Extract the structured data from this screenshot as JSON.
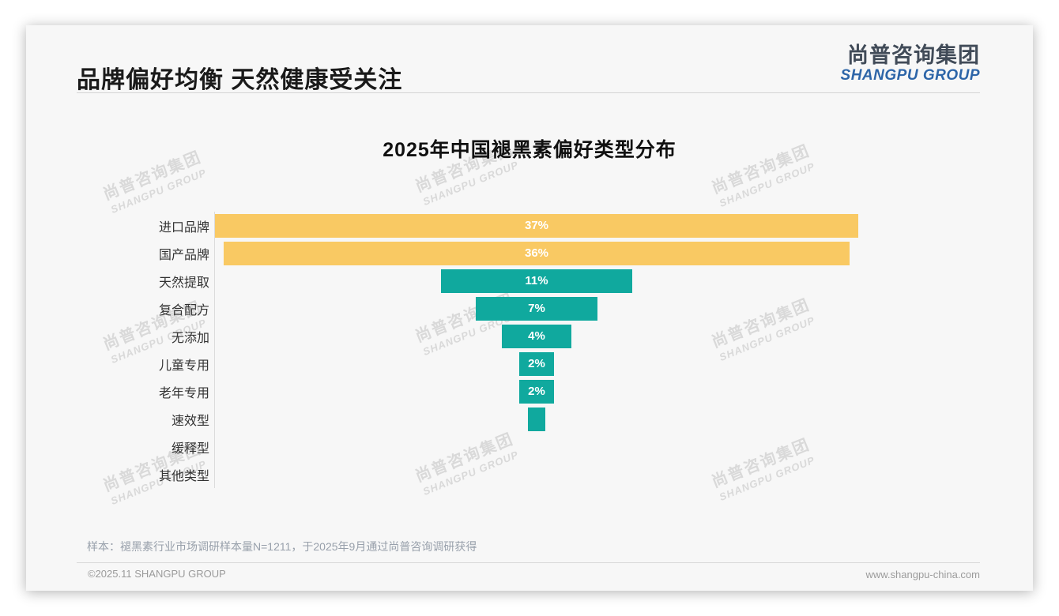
{
  "page": {
    "title": "品牌偏好均衡 天然健康受关注"
  },
  "logo": {
    "name_zh": "尚普咨询集团",
    "name_en": "SHANGPU GROUP",
    "color_zh": "#414b58",
    "color_en": "#2d65a8"
  },
  "chart_data": {
    "type": "bar",
    "variant": "horizontal-centered-funnel",
    "title": "2025年中国褪黑素偏好类型分布",
    "categories": [
      "进口品牌",
      "国产品牌",
      "天然提取",
      "复合配方",
      "无添加",
      "儿童专用",
      "老年专用",
      "速效型",
      "缓释型",
      "其他类型"
    ],
    "values": [
      37,
      36,
      11,
      7,
      4,
      2,
      2,
      1,
      0,
      0
    ],
    "value_labels": [
      "37%",
      "36%",
      "11%",
      "7%",
      "4%",
      "2%",
      "2%",
      "",
      "",
      ""
    ],
    "unit": "%",
    "xlim": [
      0,
      37
    ],
    "grid": false,
    "legend": "none",
    "color_per_bar": [
      "#F9C963",
      "#F9C963",
      "#10A99E",
      "#10A99E",
      "#10A99E",
      "#10A99E",
      "#10A99E",
      "#10A99E",
      "#10A99E",
      "#10A99E"
    ],
    "colors": {
      "brand_bars": "#F9C963",
      "feature_bars": "#10A99E",
      "value_label_text": "#ffffff"
    }
  },
  "watermark": {
    "line1": "尚普咨询集团",
    "line2": "SHANGPU GROUP"
  },
  "footnote": {
    "sample_note": "样本：褪黑素行业市场调研样本量N=1211，于2025年9月通过尚普咨询调研获得"
  },
  "footer": {
    "copyright": "©2025.11 SHANGPU GROUP",
    "website": "www.shangpu-china.com"
  }
}
